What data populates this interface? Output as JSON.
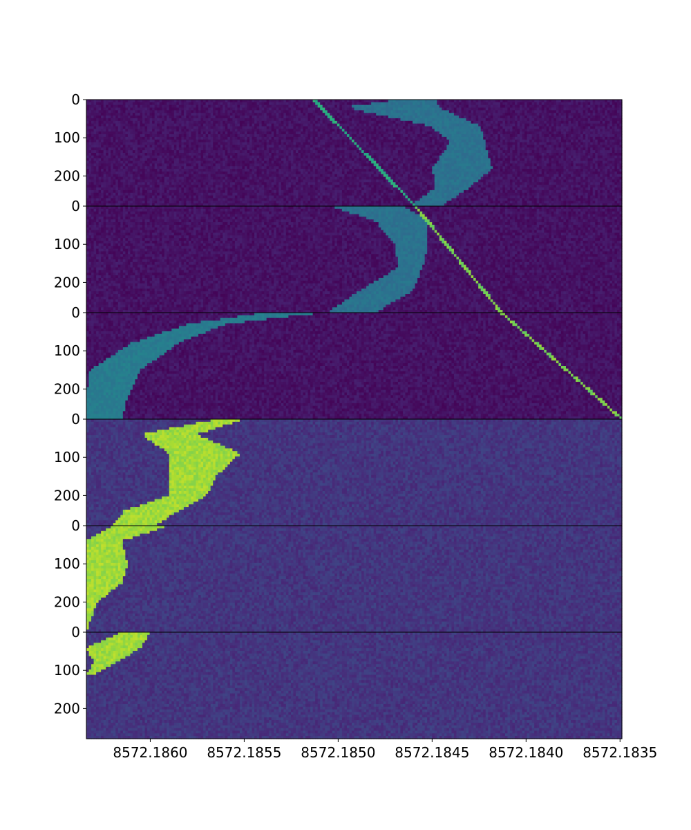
{
  "chart_data": {
    "type": "heatmap",
    "colormap": "viridis",
    "background_color": "#ffffff",
    "axis_color": "#000000",
    "x": {
      "label": "",
      "lim": [
        8572.18634,
        8572.18349
      ],
      "ticks": [
        8572.186,
        8572.1855,
        8572.185,
        8572.1845,
        8572.184,
        8572.1835
      ],
      "tick_labels": [
        "8572.1860",
        "8572.1855",
        "8572.1850",
        "8572.1845",
        "8572.1840",
        "8572.1835"
      ]
    },
    "panels": [
      {
        "ylim": [
          0,
          279
        ],
        "y_ticks": [
          0,
          100,
          200
        ],
        "y_tick_labels": [
          "0",
          "100",
          "200"
        ],
        "noise_level": 0.05,
        "noise_spread": 0.04,
        "features": [
          {
            "kind": "streak",
            "value": 0.62,
            "jitter": 0.04,
            "path": [
              [
                0,
                8572.18513
              ],
              [
                279,
                8572.18459
              ]
            ],
            "width": 1e-05
          },
          {
            "kind": "blob",
            "value": 0.38,
            "jitter": 0.03,
            "rows": [
              [
                0,
                8572.18468,
                8572.18448
              ],
              [
                20,
                8572.18496,
                8572.18446
              ],
              [
                40,
                8572.18478,
                8572.18438
              ],
              [
                70,
                8572.18451,
                8572.18424
              ],
              [
                110,
                8572.1844,
                8572.18422
              ],
              [
                180,
                8572.1845,
                8572.18418
              ],
              [
                230,
                8572.18448,
                8572.1843
              ],
              [
                279,
                8572.18462,
                8572.18445
              ]
            ]
          }
        ]
      },
      {
        "ylim": [
          0,
          279
        ],
        "y_ticks": [
          0,
          100,
          200
        ],
        "y_tick_labels": [
          "0",
          "100",
          "200"
        ],
        "noise_level": 0.05,
        "noise_spread": 0.04,
        "features": [
          {
            "kind": "streak",
            "value": 0.8,
            "jitter": 0.05,
            "path": [
              [
                0,
                8572.18459
              ],
              [
                279,
                8572.18413
              ]
            ],
            "width": 1e-05
          },
          {
            "kind": "blob",
            "value": 0.38,
            "jitter": 0.03,
            "rows": [
              [
                0,
                8572.18504,
                8572.18465
              ],
              [
                40,
                8572.1848,
                8572.18452
              ],
              [
                100,
                8572.1847,
                8572.18452
              ],
              [
                160,
                8572.18468,
                8572.18455
              ],
              [
                220,
                8572.18488,
                8572.1846
              ],
              [
                279,
                8572.18506,
                8572.1848
              ]
            ]
          }
        ]
      },
      {
        "ylim": [
          0,
          279
        ],
        "y_ticks": [
          0,
          100,
          200
        ],
        "y_tick_labels": [
          "0",
          "100",
          "200"
        ],
        "noise_level": 0.05,
        "noise_spread": 0.04,
        "features": [
          {
            "kind": "streak",
            "value": 0.8,
            "jitter": 0.05,
            "path": [
              [
                0,
                8572.18413
              ],
              [
                279,
                8572.18349
              ]
            ],
            "width": 1e-05
          },
          {
            "kind": "blob",
            "value": 0.42,
            "jitter": 0.03,
            "rows": [
              [
                0,
                8572.1854,
                8572.18508
              ],
              [
                30,
                8572.1858,
                8572.1856
              ],
              [
                80,
                8572.1861,
                8572.18585
              ],
              [
                150,
                8572.18632,
                8572.18605
              ],
              [
                220,
                8572.18634,
                8572.18612
              ],
              [
                279,
                8572.18634,
                8572.18615
              ]
            ]
          }
        ]
      },
      {
        "ylim": [
          0,
          279
        ],
        "y_ticks": [
          0,
          100,
          200
        ],
        "y_tick_labels": [
          "0",
          "100",
          "200"
        ],
        "noise_level": 0.16,
        "noise_spread": 0.05,
        "features": [
          {
            "kind": "blob",
            "value": 0.86,
            "jitter": 0.05,
            "rows": [
              [
                0,
                8572.18565,
                8572.1855
              ],
              [
                40,
                8572.18605,
                8572.18575
              ],
              [
                90,
                8572.1859,
                8572.18552
              ],
              [
                150,
                8572.1859,
                8572.18565
              ],
              [
                200,
                8572.1859,
                8572.1857
              ],
              [
                240,
                8572.18614,
                8572.18585
              ],
              [
                279,
                8572.1862,
                8572.18597
              ]
            ]
          }
        ]
      },
      {
        "ylim": [
          0,
          279
        ],
        "y_ticks": [
          0,
          100,
          200
        ],
        "y_tick_labels": [
          "0",
          "100",
          "200"
        ],
        "noise_level": 0.16,
        "noise_spread": 0.05,
        "features": [
          {
            "kind": "blob",
            "value": 0.86,
            "jitter": 0.05,
            "rows": [
              [
                0,
                8572.1862,
                8572.1859
              ],
              [
                40,
                8572.18634,
                8572.18615
              ],
              [
                100,
                8572.18634,
                8572.18612
              ],
              [
                150,
                8572.18634,
                8572.18615
              ],
              [
                200,
                8572.18634,
                8572.18628
              ],
              [
                279,
                8572.18634,
                8572.18634
              ]
            ]
          }
        ]
      },
      {
        "ylim": [
          0,
          279
        ],
        "y_ticks": [
          0,
          100,
          200
        ],
        "y_tick_labels": [
          "0",
          "100",
          "200"
        ],
        "noise_level": 0.16,
        "noise_spread": 0.05,
        "features": [
          {
            "kind": "blob",
            "value": 0.86,
            "jitter": 0.05,
            "rows": [
              [
                0,
                8572.18615,
                8572.186
              ],
              [
                40,
                8572.18634,
                8572.18605
              ],
              [
                80,
                8572.1863,
                8572.18618
              ],
              [
                110,
                8572.18634,
                8572.1863
              ]
            ]
          }
        ]
      }
    ]
  }
}
